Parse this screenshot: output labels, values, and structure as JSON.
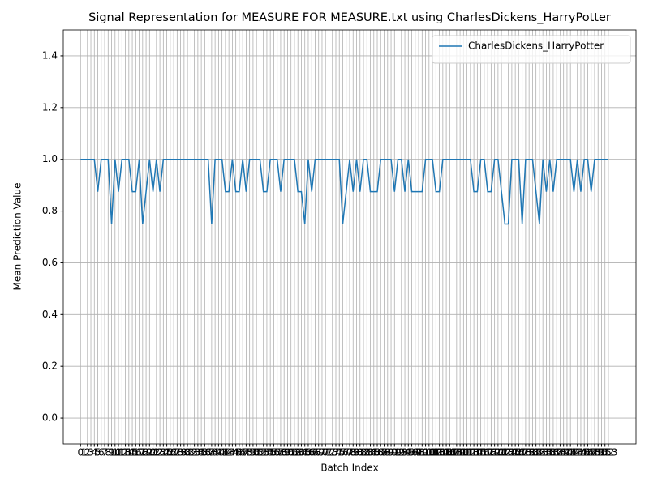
{
  "chart_data": {
    "type": "line",
    "title": "Signal Representation for MEASURE FOR MEASURE.txt using CharlesDickens_HarryPotter",
    "x_label": "Batch Index",
    "y_label": "Mean Prediction Value",
    "x": [
      0,
      1,
      2,
      3,
      4,
      5,
      6,
      7,
      8,
      9,
      10,
      11,
      12,
      13,
      14,
      15,
      16,
      17,
      18,
      19,
      20,
      21,
      22,
      23,
      24,
      25,
      26,
      27,
      28,
      29,
      30,
      31,
      32,
      33,
      34,
      35,
      36,
      37,
      38,
      39,
      40,
      41,
      42,
      43,
      44,
      45,
      46,
      47,
      48,
      49,
      50,
      51,
      52,
      53,
      54,
      55,
      56,
      57,
      58,
      59,
      60,
      61,
      62,
      63,
      64,
      65,
      66,
      67,
      68,
      69,
      70,
      71,
      72,
      73,
      74,
      75,
      76,
      77,
      78,
      79,
      80,
      81,
      82,
      83,
      84,
      85,
      86,
      87,
      88,
      89,
      90,
      91,
      92,
      93,
      94,
      95,
      96,
      97,
      98,
      99,
      100,
      101,
      102,
      103,
      104,
      105,
      106,
      107,
      108,
      109,
      110,
      111,
      112,
      113,
      114,
      115,
      116,
      117,
      118,
      119,
      120,
      121,
      122,
      123,
      124,
      125,
      126,
      127,
      128,
      129,
      130,
      131,
      132,
      133,
      134,
      135,
      136,
      137,
      138,
      139,
      140,
      141,
      142,
      143,
      144,
      145,
      146,
      147,
      148,
      149,
      150,
      151,
      152,
      153
    ],
    "series": [
      {
        "name": "CharlesDickens_HarryPotter",
        "color": "#1f77b4",
        "values": [
          1,
          1,
          1,
          1,
          1,
          0.875,
          1,
          1,
          1,
          0.75,
          1,
          0.875,
          1,
          1,
          1,
          0.875,
          0.875,
          1,
          0.75,
          0.875,
          1,
          0.875,
          1,
          0.875,
          1,
          1,
          1,
          1,
          1,
          1,
          1,
          1,
          1,
          1,
          1,
          1,
          1,
          1,
          0.75,
          1,
          1,
          1,
          0.875,
          0.875,
          1,
          0.875,
          0.875,
          1,
          0.875,
          1,
          1,
          1,
          1,
          0.875,
          0.875,
          1,
          1,
          1,
          0.875,
          1,
          1,
          1,
          1,
          0.875,
          0.875,
          0.75,
          1,
          0.875,
          1,
          1,
          1,
          1,
          1,
          1,
          1,
          1,
          0.75,
          0.875,
          1,
          0.875,
          1,
          0.875,
          1,
          1,
          0.875,
          0.875,
          0.875,
          1,
          1,
          1,
          1,
          0.875,
          1,
          1,
          0.875,
          1,
          0.875,
          0.875,
          0.875,
          0.875,
          1,
          1,
          1,
          0.875,
          0.875,
          1,
          1,
          1,
          1,
          1,
          1,
          1,
          1,
          1,
          0.875,
          0.875,
          1,
          1,
          0.875,
          0.875,
          1,
          1,
          0.875,
          0.75,
          0.75,
          1,
          1,
          1,
          0.75,
          1,
          1,
          1,
          0.875,
          0.75,
          1,
          0.875,
          1,
          0.875,
          1,
          1,
          1,
          1,
          1,
          0.875,
          1,
          0.875,
          1,
          1,
          0.875,
          1,
          1,
          1,
          1,
          1
        ]
      }
    ],
    "xlim": [
      -5,
      161
    ],
    "xticks": [
      0,
      1,
      2,
      3,
      4,
      5,
      6,
      7,
      8,
      9,
      10,
      11,
      12,
      13,
      14,
      15,
      16,
      17,
      18,
      19,
      20,
      21,
      22,
      23,
      24,
      25,
      26,
      27,
      28,
      29,
      30,
      31,
      32,
      33,
      34,
      35,
      36,
      37,
      38,
      39,
      40,
      41,
      42,
      43,
      44,
      45,
      46,
      47,
      48,
      49,
      50,
      51,
      52,
      53,
      54,
      55,
      56,
      57,
      58,
      59,
      60,
      61,
      62,
      63,
      64,
      65,
      66,
      67,
      68,
      69,
      70,
      71,
      72,
      73,
      74,
      75,
      76,
      77,
      78,
      79,
      80,
      81,
      82,
      83,
      84,
      85,
      86,
      87,
      88,
      89,
      90,
      91,
      92,
      93,
      94,
      95,
      96,
      97,
      98,
      99,
      100,
      101,
      102,
      103,
      104,
      105,
      106,
      107,
      108,
      109,
      110,
      111,
      112,
      113,
      114,
      115,
      116,
      117,
      118,
      119,
      120,
      121,
      122,
      123,
      124,
      125,
      126,
      127,
      128,
      129,
      130,
      131,
      132,
      133,
      134,
      135,
      136,
      137,
      138,
      139,
      140,
      141,
      142,
      143,
      144,
      145,
      146,
      147,
      148,
      149,
      150,
      151,
      152,
      153
    ],
    "ylim": [
      -0.1,
      1.5
    ],
    "yticks": [
      {
        "value": 0,
        "label": "0.0"
      },
      0.2,
      0.4,
      0.6,
      0.8,
      {
        "value": 1,
        "label": "1.0"
      },
      1.2,
      1.4
    ],
    "grid": true,
    "legend": "upper right"
  }
}
